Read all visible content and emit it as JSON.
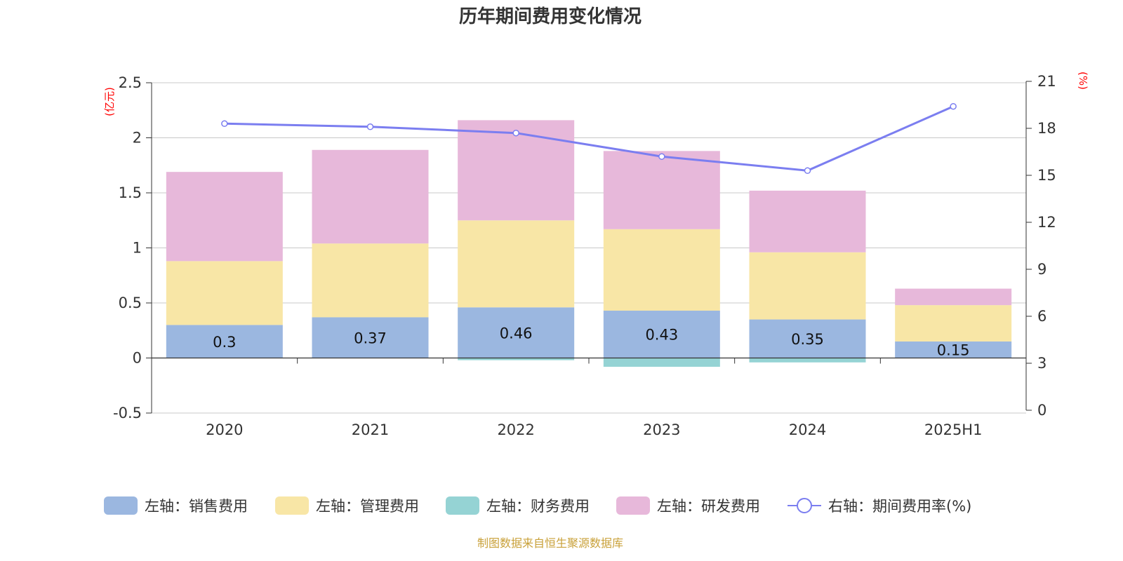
{
  "chart_data": {
    "type": "bar",
    "title": "历年期间费用变化情况",
    "categories": [
      "2020",
      "2021",
      "2022",
      "2023",
      "2024",
      "2025H1"
    ],
    "stacked": true,
    "series": [
      {
        "name": "左轴：销售费用",
        "axis": "left",
        "color": "#9bb7e0",
        "values": [
          0.3,
          0.37,
          0.46,
          0.43,
          0.35,
          0.15
        ],
        "labels": [
          "0.3",
          "0.37",
          "0.46",
          "0.43",
          "0.35",
          "0.15"
        ]
      },
      {
        "name": "左轴：管理费用",
        "axis": "left",
        "color": "#f8e6a6",
        "values": [
          0.58,
          0.67,
          0.79,
          0.74,
          0.61,
          0.33
        ]
      },
      {
        "name": "左轴：财务费用",
        "axis": "left",
        "color": "#95d3d4",
        "values": [
          0.0,
          0.0,
          -0.02,
          -0.08,
          -0.04,
          0.0
        ]
      },
      {
        "name": "左轴：研发费用",
        "axis": "left",
        "color": "#e7b8da",
        "values": [
          0.81,
          0.85,
          0.91,
          0.71,
          0.56,
          0.15
        ]
      },
      {
        "name": "右轴：期间费用率(%)",
        "axis": "right",
        "type": "line",
        "color": "#7b7ef0",
        "values": [
          18.3,
          18.1,
          17.7,
          16.2,
          15.3,
          19.4
        ]
      }
    ],
    "y_left": {
      "unit": "(亿元)",
      "ticks": [
        "2.5",
        "2",
        "1.5",
        "1",
        "0.5",
        "0",
        "-0.5"
      ],
      "tick_values": [
        2.5,
        2,
        1.5,
        1,
        0.5,
        0,
        -0.5
      ],
      "range": [
        -0.5,
        2.5
      ]
    },
    "y_right": {
      "unit": "(%)",
      "ticks": [
        "21",
        "18",
        "15",
        "12",
        "9",
        "6",
        "3",
        "0"
      ],
      "tick_values": [
        21,
        18,
        15,
        12,
        9,
        6,
        3,
        0
      ],
      "range": [
        0,
        21
      ]
    },
    "grid": true,
    "legend_position": "bottom"
  },
  "source": "制图数据来自恒生聚源数据库"
}
